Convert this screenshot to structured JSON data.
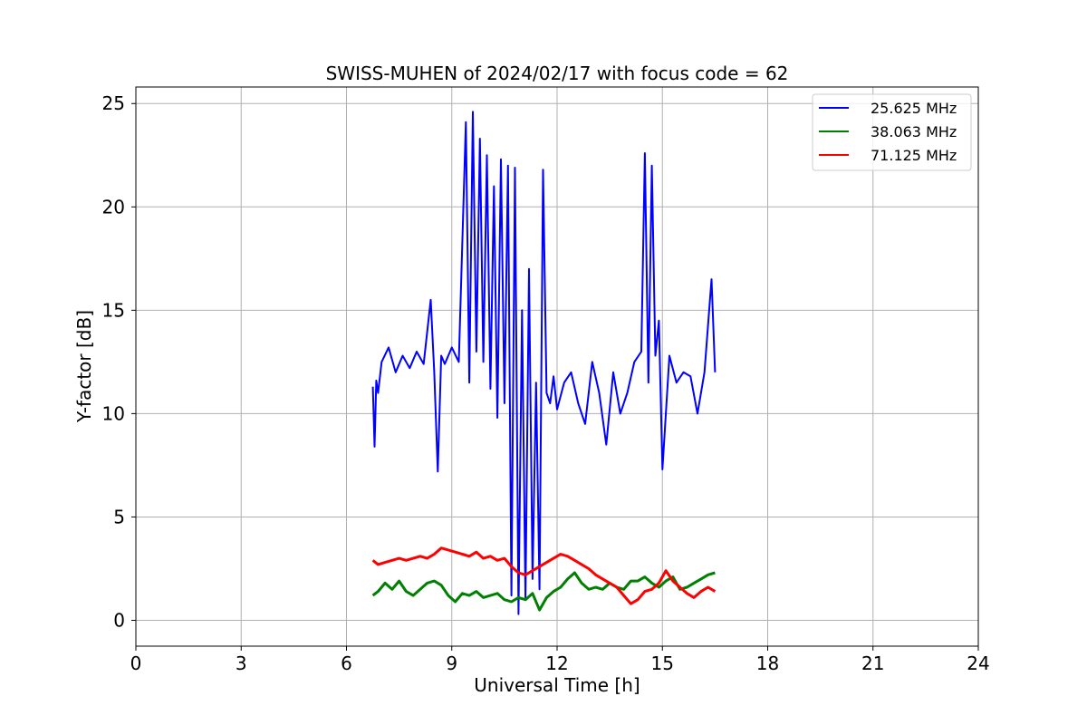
{
  "chart_data": {
    "type": "line",
    "title": "SWISS-MUHEN of 2024/02/17 with focus code = 62",
    "xlabel": "Universal Time [h]",
    "ylabel": "Y-factor [dB]",
    "xlim": [
      0,
      24
    ],
    "ylim": [
      -1.25,
      25.8
    ],
    "xticks": [
      0,
      3,
      6,
      9,
      12,
      15,
      18,
      21,
      24
    ],
    "yticks": [
      0,
      5,
      10,
      15,
      20,
      25
    ],
    "grid": true,
    "legend_position": "top-right",
    "series": [
      {
        "name": "25.625 MHz",
        "color": "#0000ff",
        "x": [
          6.75,
          6.8,
          6.85,
          6.9,
          7.0,
          7.2,
          7.4,
          7.6,
          7.8,
          8.0,
          8.2,
          8.4,
          8.5,
          8.6,
          8.7,
          8.8,
          9.0,
          9.2,
          9.4,
          9.5,
          9.6,
          9.7,
          9.8,
          9.9,
          10.0,
          10.1,
          10.2,
          10.3,
          10.4,
          10.5,
          10.6,
          10.7,
          10.8,
          10.9,
          11.0,
          11.1,
          11.2,
          11.3,
          11.4,
          11.5,
          11.6,
          11.7,
          11.8,
          11.9,
          12.0,
          12.2,
          12.4,
          12.6,
          12.8,
          13.0,
          13.2,
          13.4,
          13.6,
          13.8,
          14.0,
          14.2,
          14.4,
          14.5,
          14.6,
          14.7,
          14.8,
          14.9,
          15.0,
          15.2,
          15.4,
          15.6,
          15.8,
          16.0,
          16.2,
          16.4,
          16.5
        ],
        "y": [
          11.3,
          8.4,
          11.6,
          11.0,
          12.5,
          13.2,
          12.0,
          12.8,
          12.2,
          13.0,
          12.4,
          15.5,
          12.0,
          7.2,
          12.8,
          12.4,
          13.2,
          12.5,
          24.1,
          11.5,
          24.6,
          13.0,
          23.3,
          12.5,
          22.5,
          11.2,
          21.0,
          9.8,
          22.3,
          10.5,
          22.0,
          1.2,
          21.9,
          0.3,
          15.0,
          1.0,
          17.0,
          2.0,
          11.5,
          1.5,
          21.8,
          11.0,
          10.5,
          11.8,
          10.2,
          11.5,
          12.0,
          10.5,
          9.5,
          12.5,
          11.0,
          8.5,
          12.0,
          10.0,
          11.0,
          12.5,
          13.0,
          22.6,
          11.5,
          22.0,
          12.8,
          14.5,
          7.3,
          12.8,
          11.5,
          12.0,
          11.8,
          10.0,
          12.0,
          16.5,
          12.0
        ]
      },
      {
        "name": "38.063 MHz",
        "color": "#008000",
        "x": [
          6.75,
          6.9,
          7.1,
          7.3,
          7.5,
          7.7,
          7.9,
          8.1,
          8.3,
          8.5,
          8.7,
          8.9,
          9.1,
          9.3,
          9.5,
          9.7,
          9.9,
          10.1,
          10.3,
          10.5,
          10.7,
          10.9,
          11.1,
          11.3,
          11.5,
          11.7,
          11.9,
          12.1,
          12.3,
          12.5,
          12.7,
          12.9,
          13.1,
          13.3,
          13.5,
          13.7,
          13.9,
          14.1,
          14.3,
          14.5,
          14.7,
          14.9,
          15.1,
          15.3,
          15.5,
          15.7,
          15.9,
          16.1,
          16.3,
          16.5
        ],
        "y": [
          1.2,
          1.4,
          1.8,
          1.5,
          1.9,
          1.4,
          1.2,
          1.5,
          1.8,
          1.9,
          1.7,
          1.2,
          0.9,
          1.3,
          1.2,
          1.4,
          1.1,
          1.2,
          1.3,
          1.0,
          0.9,
          1.1,
          1.0,
          1.3,
          0.5,
          1.1,
          1.4,
          1.6,
          2.0,
          2.3,
          1.8,
          1.5,
          1.6,
          1.5,
          1.8,
          1.6,
          1.5,
          1.9,
          1.9,
          2.1,
          1.8,
          1.6,
          1.9,
          2.1,
          1.5,
          1.6,
          1.8,
          2.0,
          2.2,
          2.3
        ]
      },
      {
        "name": "71.125 MHz",
        "color": "#ff0000",
        "x": [
          6.75,
          6.9,
          7.1,
          7.3,
          7.5,
          7.7,
          7.9,
          8.1,
          8.3,
          8.5,
          8.7,
          8.9,
          9.1,
          9.3,
          9.5,
          9.7,
          9.9,
          10.1,
          10.3,
          10.5,
          10.7,
          10.9,
          11.1,
          11.3,
          11.5,
          11.7,
          11.9,
          12.1,
          12.3,
          12.5,
          12.7,
          12.9,
          13.1,
          13.3,
          13.5,
          13.7,
          13.9,
          14.1,
          14.3,
          14.5,
          14.7,
          14.9,
          15.1,
          15.3,
          15.5,
          15.7,
          15.9,
          16.1,
          16.3,
          16.5
        ],
        "y": [
          2.9,
          2.7,
          2.8,
          2.9,
          3.0,
          2.9,
          3.0,
          3.1,
          3.0,
          3.2,
          3.5,
          3.4,
          3.3,
          3.2,
          3.1,
          3.3,
          3.0,
          3.1,
          2.9,
          3.0,
          2.6,
          2.3,
          2.2,
          2.4,
          2.6,
          2.8,
          3.0,
          3.2,
          3.1,
          2.9,
          2.7,
          2.5,
          2.2,
          2.0,
          1.8,
          1.6,
          1.2,
          0.8,
          1.0,
          1.4,
          1.5,
          1.8,
          2.4,
          1.9,
          1.6,
          1.3,
          1.1,
          1.4,
          1.6,
          1.4
        ]
      }
    ]
  }
}
